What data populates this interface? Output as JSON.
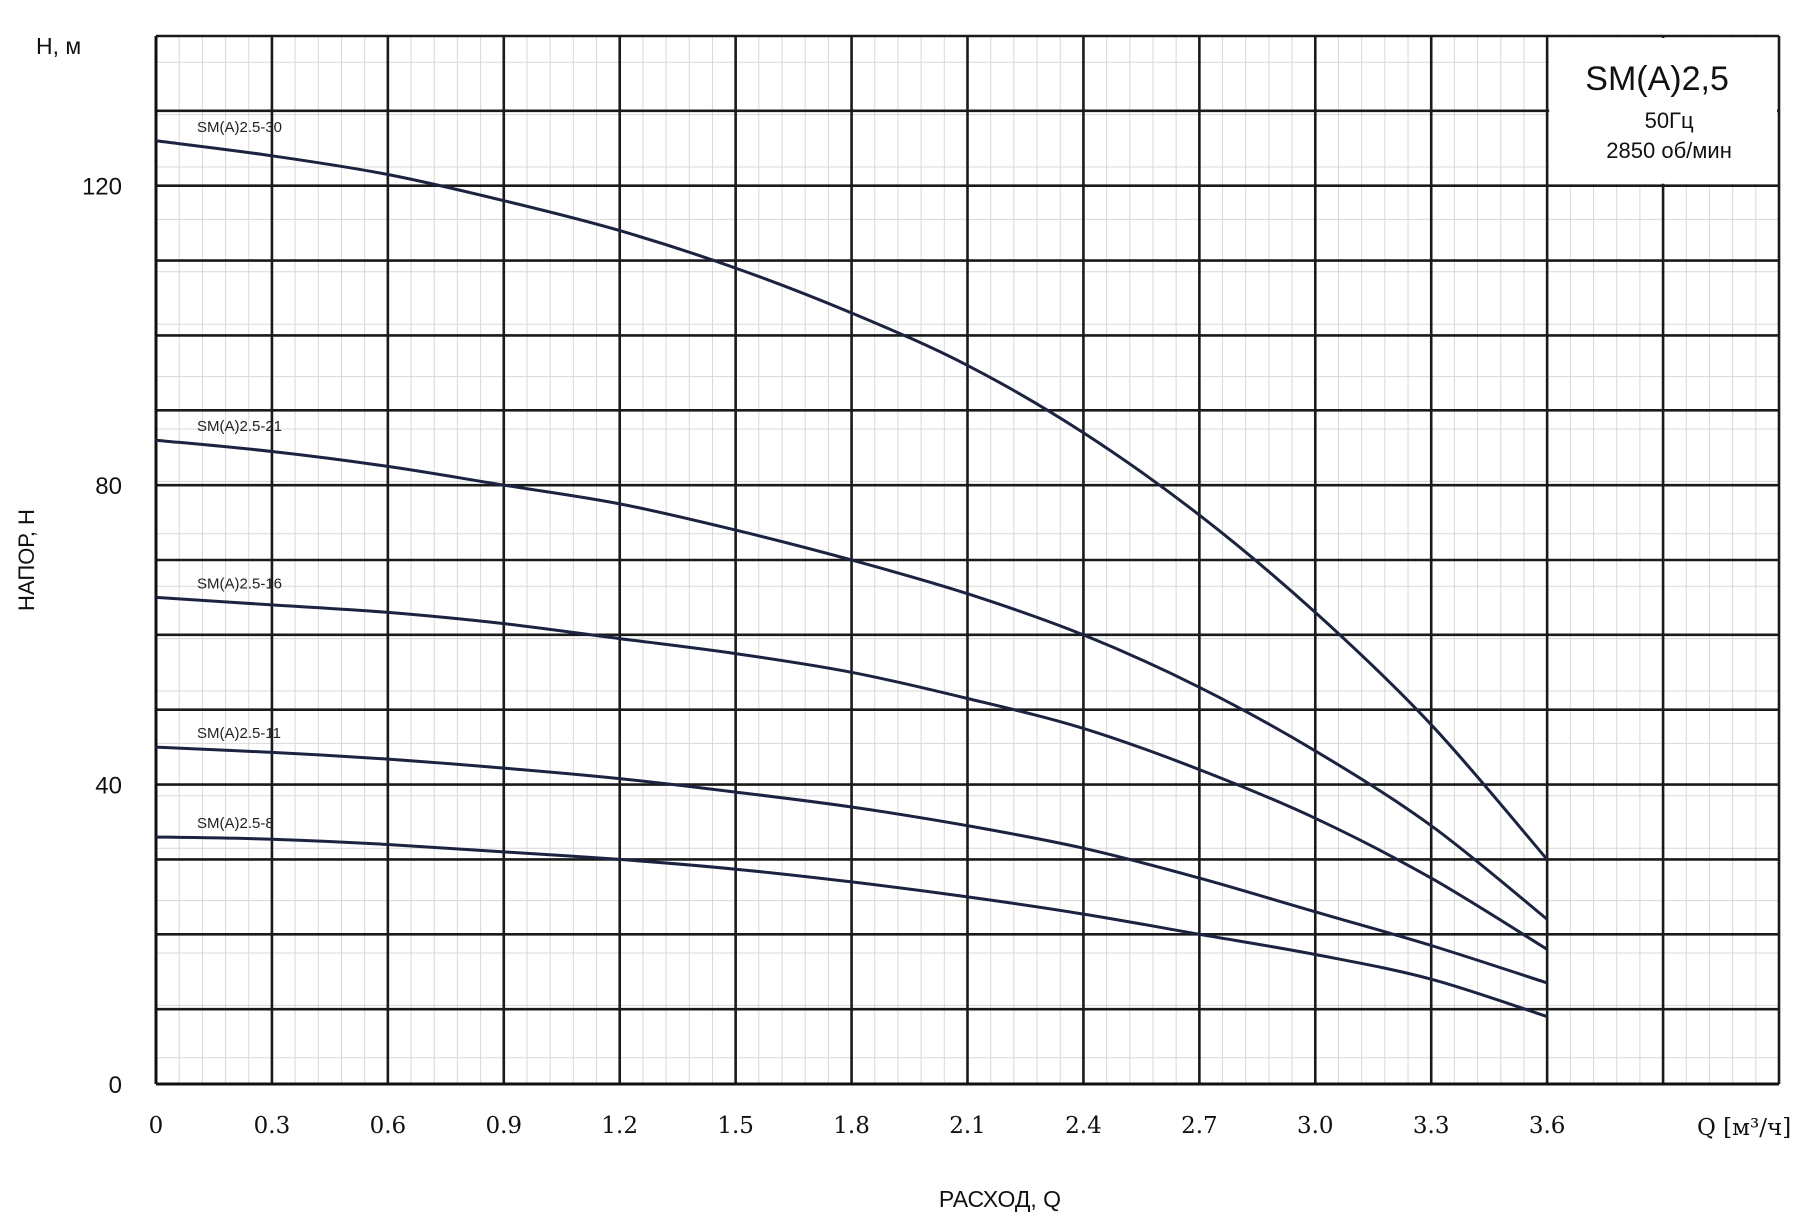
{
  "chart_data": {
    "type": "line",
    "title": "SM(A)2,5",
    "info_lines": [
      "50Гц",
      "2850 об/мин"
    ],
    "y_unit_label": "H, м",
    "ylabel": "НАПОР, Н",
    "xlabel": "РАСХОД, Q",
    "x_unit_label": "Q [м³/ч]",
    "xlim": [
      0,
      4.2
    ],
    "ylim": [
      0,
      140
    ],
    "x_ticks": [
      "0",
      "0.3",
      "0.6",
      "0.9",
      "1.2",
      "1.5",
      "1.8",
      "2.1",
      "2.4",
      "2.7",
      "3.0",
      "3.3",
      "3.6"
    ],
    "y_ticks": [
      "0",
      "40",
      "80",
      "120"
    ],
    "grid": true,
    "series": [
      {
        "name": "SM(A)2.5-30",
        "points": [
          [
            0,
            126
          ],
          [
            0.3,
            124
          ],
          [
            0.6,
            121.5
          ],
          [
            0.9,
            118
          ],
          [
            1.2,
            114
          ],
          [
            1.5,
            109
          ],
          [
            1.8,
            103
          ],
          [
            2.1,
            96
          ],
          [
            2.4,
            87
          ],
          [
            2.7,
            76
          ],
          [
            3.0,
            63
          ],
          [
            3.3,
            48
          ],
          [
            3.6,
            30
          ]
        ]
      },
      {
        "name": "SM(A)2.5-21",
        "points": [
          [
            0,
            86
          ],
          [
            0.3,
            84.5
          ],
          [
            0.6,
            82.5
          ],
          [
            0.9,
            80
          ],
          [
            1.2,
            77.5
          ],
          [
            1.5,
            74
          ],
          [
            1.8,
            70
          ],
          [
            2.1,
            65.5
          ],
          [
            2.4,
            60
          ],
          [
            2.7,
            53
          ],
          [
            3.0,
            44.5
          ],
          [
            3.3,
            34.5
          ],
          [
            3.6,
            22
          ]
        ]
      },
      {
        "name": "SM(A)2.5-16",
        "points": [
          [
            0,
            65
          ],
          [
            0.3,
            64
          ],
          [
            0.6,
            63
          ],
          [
            0.9,
            61.5
          ],
          [
            1.2,
            59.5
          ],
          [
            1.5,
            57.5
          ],
          [
            1.8,
            55
          ],
          [
            2.1,
            51.5
          ],
          [
            2.4,
            47.5
          ],
          [
            2.7,
            42
          ],
          [
            3.0,
            35.5
          ],
          [
            3.3,
            27.5
          ],
          [
            3.6,
            18
          ]
        ]
      },
      {
        "name": "SM(A)2.5-11",
        "points": [
          [
            0,
            45
          ],
          [
            0.3,
            44.3
          ],
          [
            0.6,
            43.4
          ],
          [
            0.9,
            42.2
          ],
          [
            1.2,
            40.8
          ],
          [
            1.5,
            39
          ],
          [
            1.8,
            37
          ],
          [
            2.1,
            34.5
          ],
          [
            2.4,
            31.5
          ],
          [
            2.7,
            27.5
          ],
          [
            3.0,
            23
          ],
          [
            3.3,
            18.5
          ],
          [
            3.6,
            13.5
          ]
        ]
      },
      {
        "name": "SM(A)2.5-8",
        "points": [
          [
            0,
            33
          ],
          [
            0.3,
            32.7
          ],
          [
            0.6,
            32
          ],
          [
            0.9,
            31
          ],
          [
            1.2,
            30
          ],
          [
            1.5,
            28.7
          ],
          [
            1.8,
            27
          ],
          [
            2.1,
            25
          ],
          [
            2.4,
            22.7
          ],
          [
            2.7,
            20
          ],
          [
            3.0,
            17.3
          ],
          [
            3.3,
            14
          ],
          [
            3.6,
            9
          ]
        ]
      }
    ],
    "line_color": "#1b2340"
  }
}
